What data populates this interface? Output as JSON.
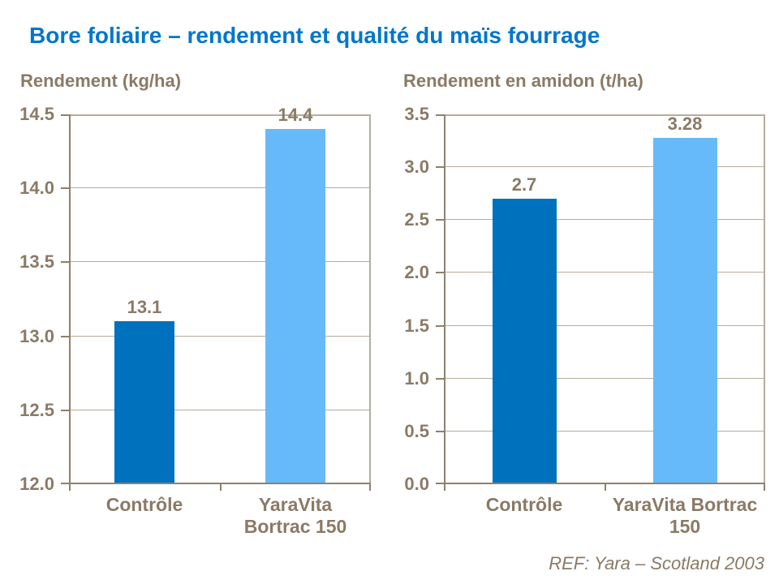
{
  "title": "Bore foliaire – rendement et qualité du maïs fourrage",
  "footer": "REF: Yara – Scotland 2003",
  "colors": {
    "title_blue": "#0076CC",
    "bar_dark_blue": "#0071BC",
    "bar_light_blue": "#67BAF9",
    "text_taupe": "#8A7A66",
    "grid_taupe": "#B5AC9E",
    "axis_taupe": "#8F806D"
  },
  "chart_data": [
    {
      "type": "bar",
      "title": "Rendement (kg/ha)",
      "categories": [
        [
          "Contrôle"
        ],
        [
          "YaraVita",
          "Bortrac 150"
        ]
      ],
      "values": [
        13.1,
        14.4
      ],
      "value_labels": [
        "13.1",
        "14.4"
      ],
      "bar_colors": [
        "#0071BC",
        "#67BAF9"
      ],
      "ylim": [
        12.0,
        14.5
      ],
      "yticks": [
        "14.5",
        "14.0",
        "13.5",
        "13.0",
        "12.5",
        "12.0"
      ],
      "xlabel": "",
      "ylabel": "",
      "grid": true,
      "legend": false
    },
    {
      "type": "bar",
      "title": "Rendement en amidon (t/ha)",
      "categories": [
        [
          "Contrôle"
        ],
        [
          "YaraVita Bortrac",
          "150"
        ]
      ],
      "values": [
        2.7,
        3.28
      ],
      "value_labels": [
        "2.7",
        "3.28"
      ],
      "bar_colors": [
        "#0071BC",
        "#67BAF9"
      ],
      "ylim": [
        0.0,
        3.5
      ],
      "yticks": [
        "3.5",
        "3.0",
        "2.5",
        "2.0",
        "1.5",
        "1.0",
        "0.5",
        "0.0"
      ],
      "xlabel": "",
      "ylabel": "",
      "grid": true,
      "legend": false
    }
  ]
}
